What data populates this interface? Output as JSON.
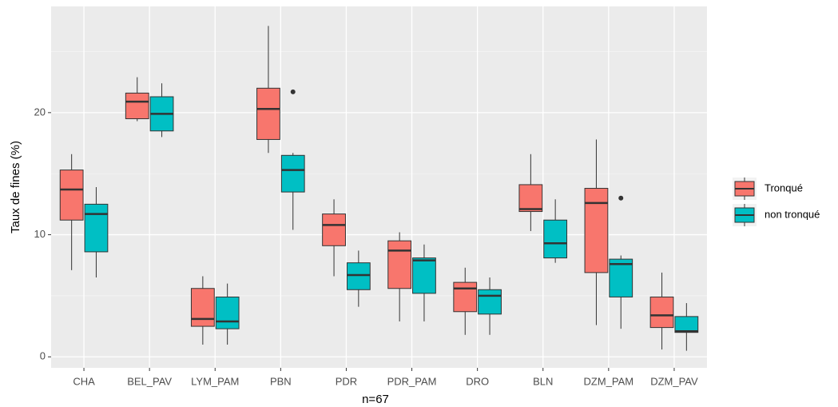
{
  "chart_data": {
    "type": "boxplot",
    "x_label": "n=67",
    "y_label": "Taux de fines (%)",
    "categories": [
      "CHA",
      "BEL_PAV",
      "LYM_PAM",
      "PBN",
      "PDR",
      "PDR_PAM",
      "DRO",
      "BLN",
      "DZM_PAM",
      "DZM_PAV"
    ],
    "ylim": [
      -0.9,
      28.7
    ],
    "yticks": [
      0,
      10,
      20
    ],
    "yminorticks": [
      5,
      15,
      25
    ],
    "grid": true,
    "legend_position": "right",
    "series": [
      {
        "name": "Tronqué",
        "color": "#F8766D",
        "min": [
          7.1,
          19.3,
          1.0,
          16.7,
          6.6,
          2.9,
          1.8,
          10.3,
          2.6,
          0.6
        ],
        "q1": [
          11.2,
          19.5,
          2.5,
          17.8,
          9.1,
          5.6,
          3.7,
          11.9,
          6.9,
          2.4
        ],
        "median": [
          13.7,
          20.9,
          3.1,
          20.3,
          10.8,
          8.7,
          5.6,
          12.1,
          12.6,
          3.4
        ],
        "q3": [
          15.3,
          21.6,
          5.6,
          22.0,
          11.7,
          9.5,
          6.1,
          14.1,
          13.8,
          4.9
        ],
        "max": [
          16.6,
          22.9,
          6.6,
          27.1,
          12.9,
          10.2,
          7.3,
          16.6,
          17.8,
          6.9
        ],
        "outliers": [
          [],
          [],
          [],
          [],
          [],
          [],
          [],
          [],
          [],
          []
        ]
      },
      {
        "name": "non tronqué",
        "color": "#00BFC4",
        "min": [
          6.5,
          18.0,
          1.0,
          10.4,
          4.1,
          2.9,
          1.8,
          7.7,
          2.3,
          0.5
        ],
        "q1": [
          8.6,
          18.5,
          2.3,
          13.5,
          5.5,
          5.2,
          3.5,
          8.1,
          4.9,
          2.0
        ],
        "median": [
          11.7,
          19.9,
          2.9,
          15.3,
          6.7,
          7.9,
          5.0,
          9.3,
          7.6,
          2.1
        ],
        "q3": [
          12.5,
          21.3,
          4.9,
          16.5,
          7.7,
          8.1,
          5.5,
          11.2,
          8.0,
          3.3
        ],
        "max": [
          13.9,
          22.4,
          6.0,
          16.7,
          8.7,
          9.2,
          6.5,
          12.9,
          8.3,
          4.4
        ],
        "outliers": [
          [],
          [],
          [],
          [
            21.7
          ],
          [],
          [],
          [],
          [],
          [
            13.0
          ],
          []
        ]
      }
    ]
  }
}
